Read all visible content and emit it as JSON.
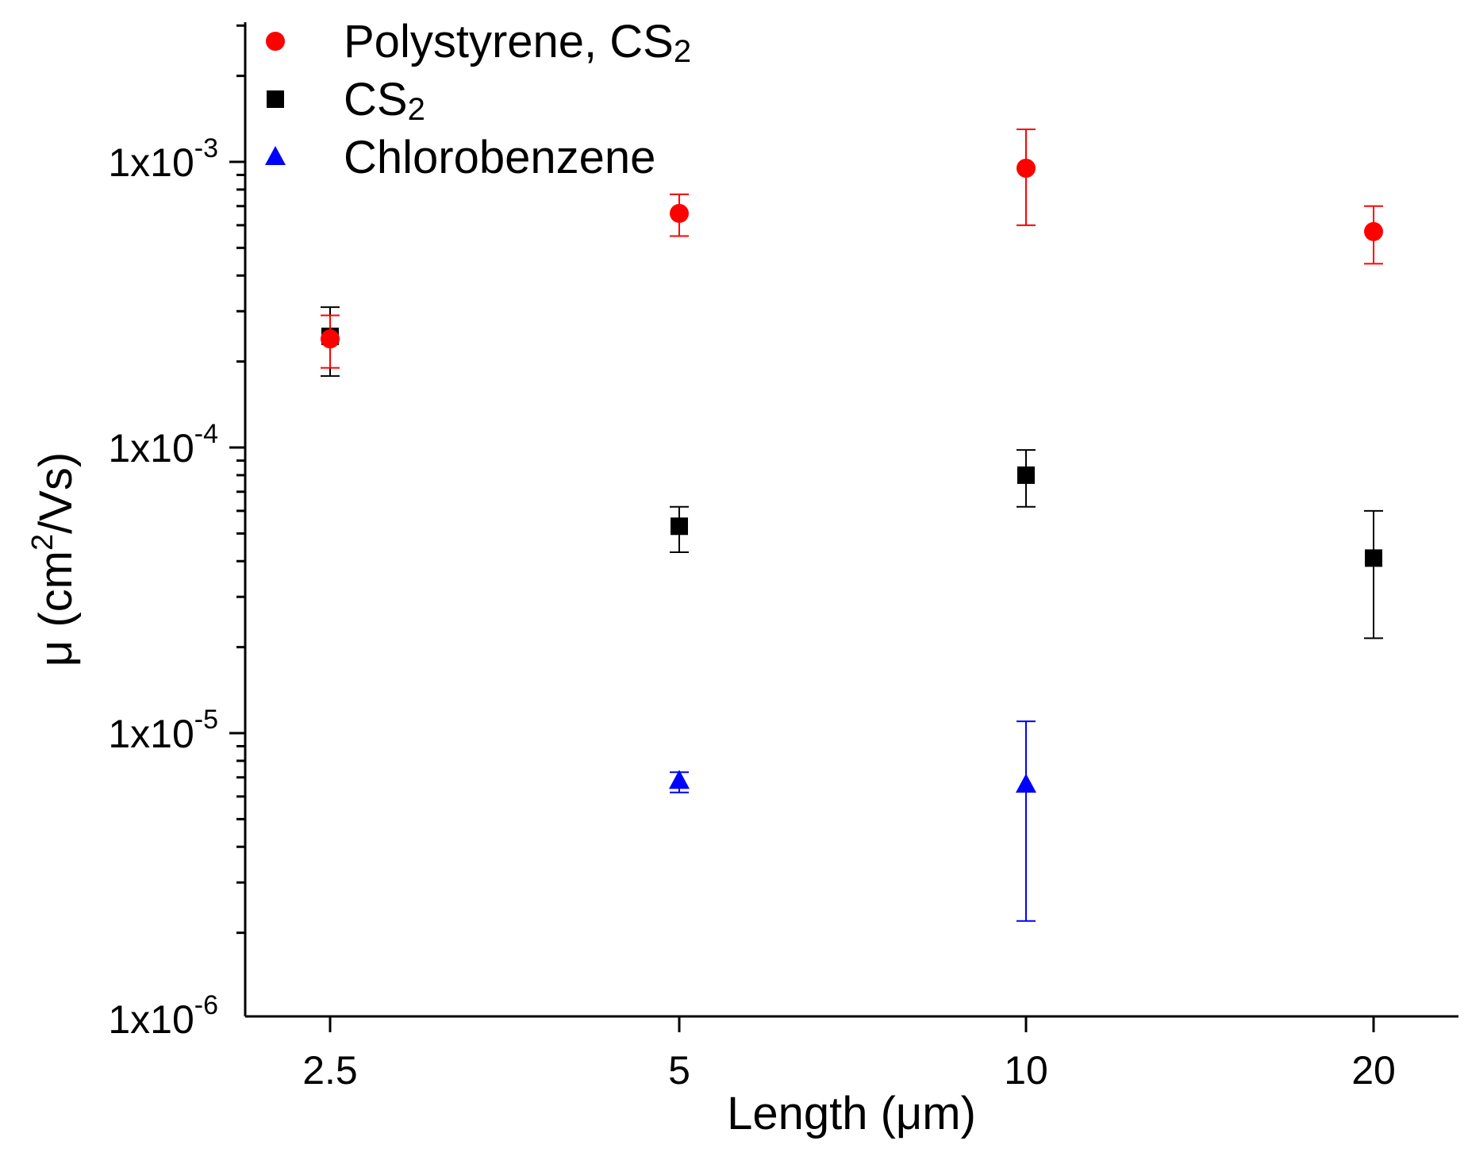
{
  "chart_data": {
    "type": "scatter",
    "title": "",
    "xlabel": "Length (μm)",
    "ylabel_parts": {
      "base": "μ (cm",
      "sup": "2",
      "rest": "/Vs)"
    },
    "x_scale": "categorical",
    "categories": [
      "2.5",
      "5",
      "10",
      "20"
    ],
    "y_scale": "log",
    "ylim": [
      1e-06,
      0.003
    ],
    "y_tick_labels": [
      {
        "value": 0.001,
        "base": "1x10",
        "exp": "-3"
      },
      {
        "value": 0.0001,
        "base": "1x10",
        "exp": "-4"
      },
      {
        "value": 1e-05,
        "base": "1x10",
        "exp": "-5"
      },
      {
        "value": 1e-06,
        "base": "1x10",
        "exp": "-6"
      }
    ],
    "grid": false,
    "legend_position": "top-left",
    "series": [
      {
        "name": "Polystyrene, CS",
        "name_sub": "2",
        "marker": "circle",
        "color": "#ff0000",
        "points": [
          {
            "x": "2.5",
            "y": 0.00024,
            "err_low": 0.00019,
            "err_high": 0.00029
          },
          {
            "x": "5",
            "y": 0.00066,
            "err_low": 0.00055,
            "err_high": 0.00077
          },
          {
            "x": "10",
            "y": 0.00095,
            "err_low": 0.0006,
            "err_high": 0.0013
          },
          {
            "x": "20",
            "y": 0.00057,
            "err_low": 0.00044,
            "err_high": 0.0007
          }
        ]
      },
      {
        "name": "CS",
        "name_sub": "2",
        "marker": "square",
        "color": "#000000",
        "points": [
          {
            "x": "2.5",
            "y": 0.000245,
            "err_low": 0.000178,
            "err_high": 0.00031
          },
          {
            "x": "5",
            "y": 5.3e-05,
            "err_low": 4.3e-05,
            "err_high": 6.2e-05
          },
          {
            "x": "10",
            "y": 8e-05,
            "err_low": 6.2e-05,
            "err_high": 9.8e-05
          },
          {
            "x": "20",
            "y": 4.1e-05,
            "err_low": 2.15e-05,
            "err_high": 6e-05
          }
        ]
      },
      {
        "name": "Chlorobenzene",
        "name_sub": "",
        "marker": "triangle",
        "color": "#0000ff",
        "points": [
          {
            "x": "5",
            "y": 6.8e-06,
            "err_low": 6.2e-06,
            "err_high": 7.3e-06
          },
          {
            "x": "10",
            "y": 6.6e-06,
            "err_low": 2.2e-06,
            "err_high": 1.1e-05
          }
        ]
      }
    ]
  }
}
